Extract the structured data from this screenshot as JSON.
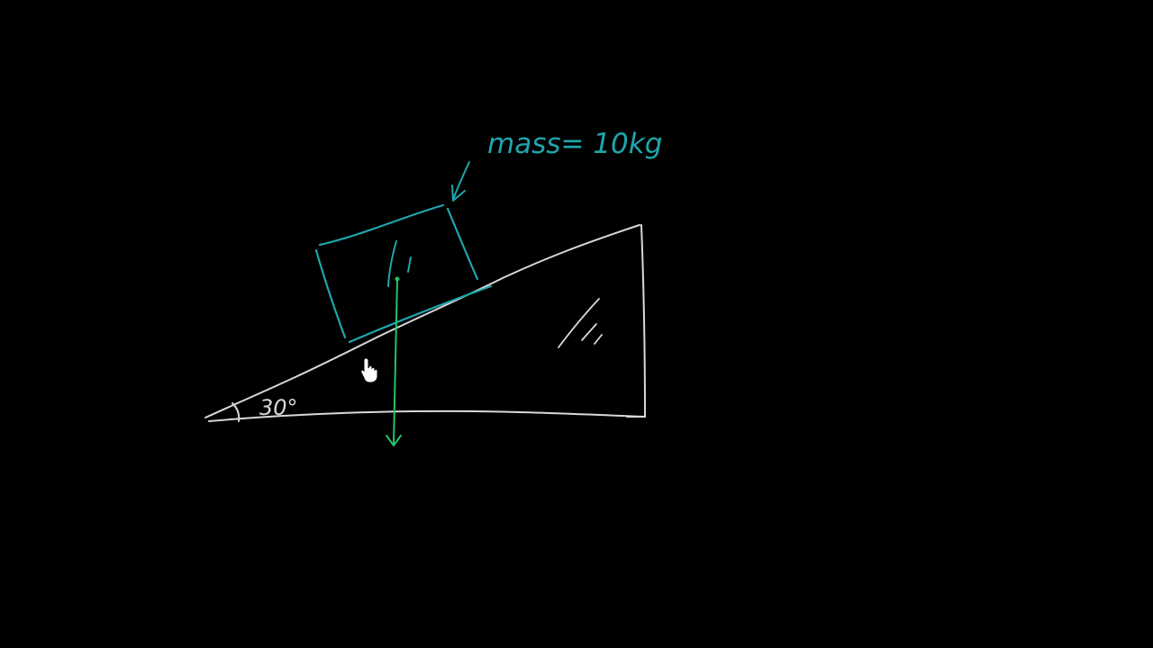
{
  "mass_label": "mass= 10kg",
  "angle_label": "30°",
  "colors": {
    "background": "#000000",
    "incline": "#d8d8d8",
    "block": "#1fa6ad",
    "force_arrow": "#27c265",
    "cursor": "#ffffff"
  },
  "icons": {
    "cursor": "hand-pointer-icon"
  }
}
